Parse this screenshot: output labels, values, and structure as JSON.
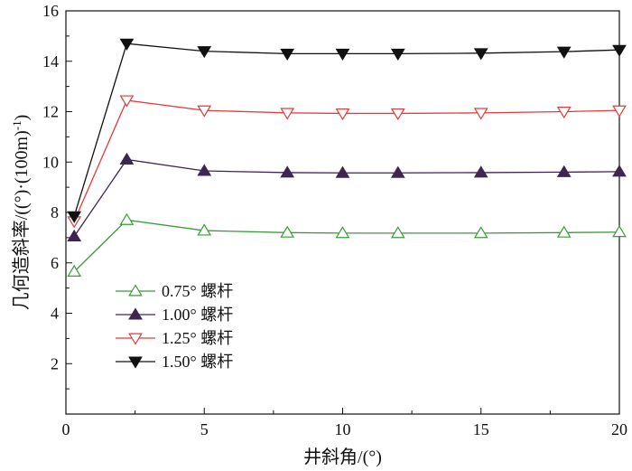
{
  "chart_data": {
    "type": "line",
    "title": "",
    "xlabel": "井斜角/(°)",
    "ylabel_main": "几何造斜率/((°)·(100m)",
    "ylabel_sup": "-1",
    "ylabel_close": ")",
    "xlim": [
      0,
      20
    ],
    "ylim": [
      0,
      16
    ],
    "xticks": [
      0,
      5,
      10,
      15,
      20
    ],
    "yticks": [
      2,
      4,
      6,
      8,
      10,
      12,
      14,
      16
    ],
    "grid": false,
    "legend_position": "bottom-left",
    "x": [
      0.3,
      2.2,
      5,
      8,
      10,
      12,
      15,
      18,
      20
    ],
    "series": [
      {
        "name": "0.75° 螺杆",
        "color": "#3a9a3a",
        "marker": "triangle-up-open",
        "values": [
          5.65,
          7.7,
          7.28,
          7.2,
          7.18,
          7.18,
          7.18,
          7.2,
          7.22
        ]
      },
      {
        "name": "1.00° 螺杆",
        "color": "#3d2650",
        "marker": "triangle-up-filled",
        "values": [
          7.05,
          10.1,
          9.65,
          9.58,
          9.57,
          9.57,
          9.58,
          9.6,
          9.62
        ]
      },
      {
        "name": "1.25° 螺杆",
        "color": "#e33a3a",
        "marker": "triangle-down-open",
        "values": [
          7.65,
          12.45,
          12.05,
          11.95,
          11.93,
          11.93,
          11.95,
          12.0,
          12.05
        ]
      },
      {
        "name": "1.50° 螺杆",
        "color": "#111111",
        "marker": "triangle-down-filled",
        "values": [
          7.85,
          14.7,
          14.4,
          14.3,
          14.3,
          14.3,
          14.32,
          14.38,
          14.45
        ]
      }
    ]
  }
}
